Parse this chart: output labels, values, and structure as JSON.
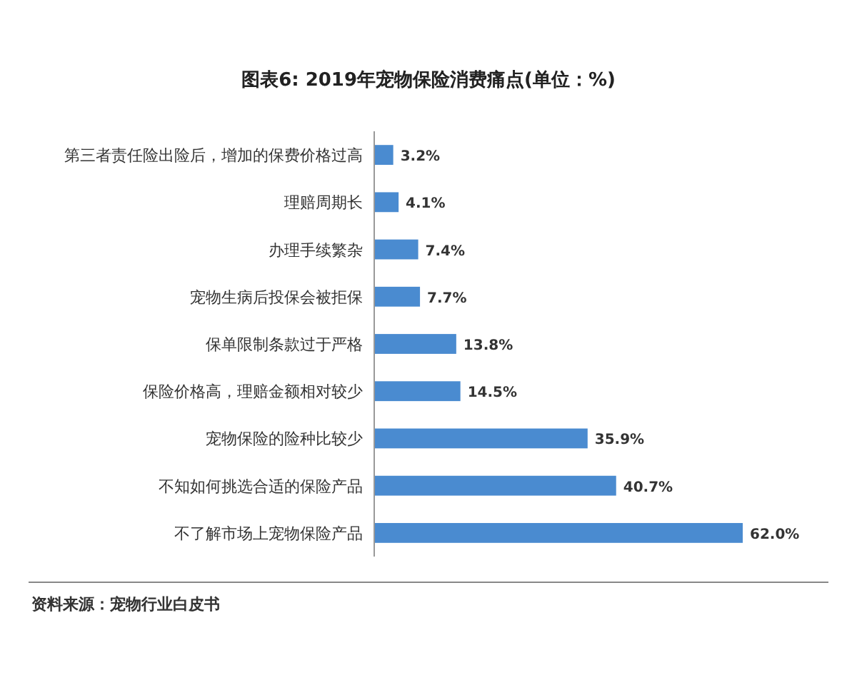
{
  "chart_data": {
    "type": "bar",
    "orientation": "horizontal",
    "title": "图表6: 2019年宠物保险消费痛点(单位：%)",
    "categories": [
      "第三者责任险出险后，增加的保费价格过高",
      "理赔周期长",
      "办理手续繁杂",
      "宠物生病后投保会被拒保",
      "保单限制条款过于严格",
      "保险价格高，理赔金额相对较少",
      "宠物保险的险种比较少",
      "不知如何挑选合适的保险产品",
      "不了解市场上宠物保险产品"
    ],
    "values": [
      3.2,
      4.1,
      7.4,
      7.7,
      13.8,
      14.5,
      35.9,
      40.7,
      62.0
    ],
    "value_labels": [
      "3.2%",
      "4.1%",
      "7.4%",
      "7.7%",
      "13.8%",
      "14.5%",
      "35.9%",
      "40.7%",
      "62.0%"
    ],
    "color": "#4a8bd0",
    "annotations": [
      "资料来源：宠物行业白皮书"
    ]
  }
}
